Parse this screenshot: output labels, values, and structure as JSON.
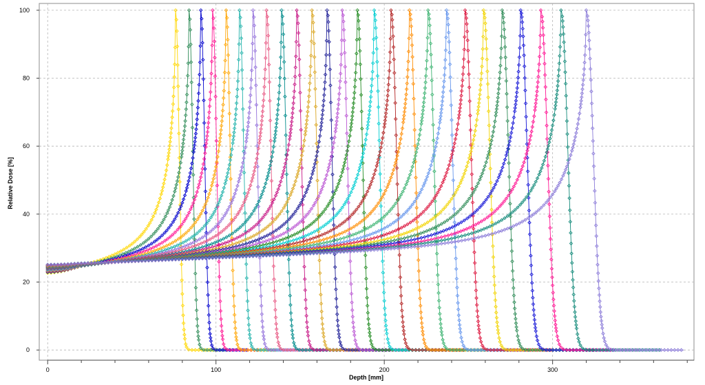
{
  "chart_data": {
    "type": "line",
    "title": "",
    "xlabel": "Depth [mm]",
    "ylabel": "Relative Dose [%]",
    "xlim": [
      -5,
      384
    ],
    "ylim": [
      -3,
      102
    ],
    "grid": true,
    "legend": "none",
    "x_ticks": [
      0,
      100,
      200,
      300
    ],
    "x_tick_labels": [
      "0",
      "100",
      "200",
      "300"
    ],
    "x_minor_step": 20,
    "y_ticks": [
      0,
      20,
      40,
      60,
      80,
      100
    ],
    "y_tick_labels": [
      "0",
      "20",
      "40",
      "60",
      "80",
      "100"
    ],
    "markers": "diamond",
    "series": [
      {
        "peak_depth": 76,
        "entrance_dose": 22.2,
        "color": "#ffd700"
      },
      {
        "peak_depth": 84,
        "entrance_dose": 22.5,
        "color": "#2e8b57"
      },
      {
        "peak_depth": 91,
        "entrance_dose": 22.7,
        "color": "#0000cd"
      },
      {
        "peak_depth": 98,
        "entrance_dose": 22.9,
        "color": "#ff1493"
      },
      {
        "peak_depth": 106,
        "entrance_dose": 23.1,
        "color": "#ffa500"
      },
      {
        "peak_depth": 114,
        "entrance_dose": 23.3,
        "color": "#20b2aa"
      },
      {
        "peak_depth": 122,
        "entrance_dose": 23.5,
        "color": "#9370db"
      },
      {
        "peak_depth": 130,
        "entrance_dose": 23.7,
        "color": "#e75480"
      },
      {
        "peak_depth": 139,
        "entrance_dose": 23.8,
        "color": "#008b8b"
      },
      {
        "peak_depth": 148,
        "entrance_dose": 24.0,
        "color": "#c71585"
      },
      {
        "peak_depth": 157,
        "entrance_dose": 24.1,
        "color": "#daa520"
      },
      {
        "peak_depth": 166,
        "entrance_dose": 24.2,
        "color": "#1e1e96"
      },
      {
        "peak_depth": 175,
        "entrance_dose": 24.3,
        "color": "#ba55d3"
      },
      {
        "peak_depth": 184,
        "entrance_dose": 24.4,
        "color": "#228b22"
      },
      {
        "peak_depth": 194,
        "entrance_dose": 24.5,
        "color": "#00ced1"
      },
      {
        "peak_depth": 204,
        "entrance_dose": 24.6,
        "color": "#b22222"
      },
      {
        "peak_depth": 215,
        "entrance_dose": 24.7,
        "color": "#ff8c00"
      },
      {
        "peak_depth": 226,
        "entrance_dose": 24.8,
        "color": "#3cb371"
      },
      {
        "peak_depth": 237,
        "entrance_dose": 24.8,
        "color": "#6495ed"
      },
      {
        "peak_depth": 248,
        "entrance_dose": 24.9,
        "color": "#dc143c"
      },
      {
        "peak_depth": 259,
        "entrance_dose": 24.9,
        "color": "#f2d400"
      },
      {
        "peak_depth": 270,
        "entrance_dose": 25.0,
        "color": "#2e8b57"
      },
      {
        "peak_depth": 281,
        "entrance_dose": 25.0,
        "color": "#1515d6"
      },
      {
        "peak_depth": 293,
        "entrance_dose": 25.0,
        "color": "#ff1493"
      },
      {
        "peak_depth": 305,
        "entrance_dose": 25.1,
        "color": "#138a7a"
      },
      {
        "peak_depth": 320,
        "entrance_dose": 25.1,
        "color": "#8a7ad8"
      }
    ]
  }
}
